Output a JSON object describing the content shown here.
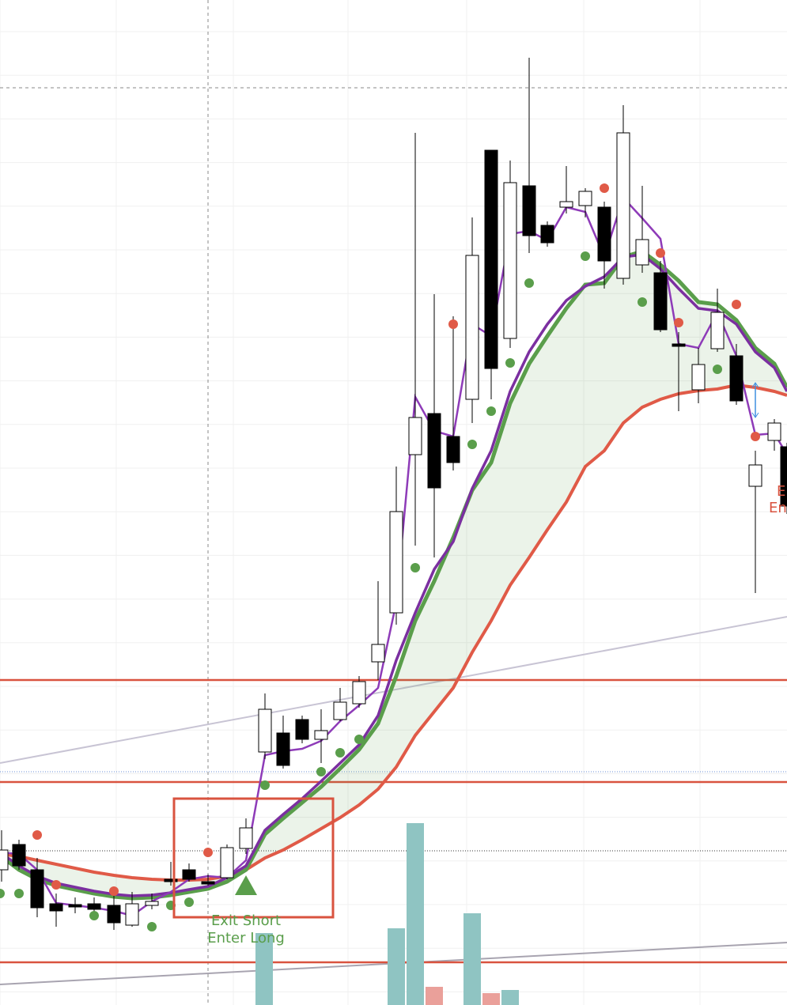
{
  "signals": [
    {
      "lines": [
        "Exit Short",
        "Enter Long"
      ]
    },
    {
      "lines": [
        "E",
        "En"
      ]
    }
  ]
}
